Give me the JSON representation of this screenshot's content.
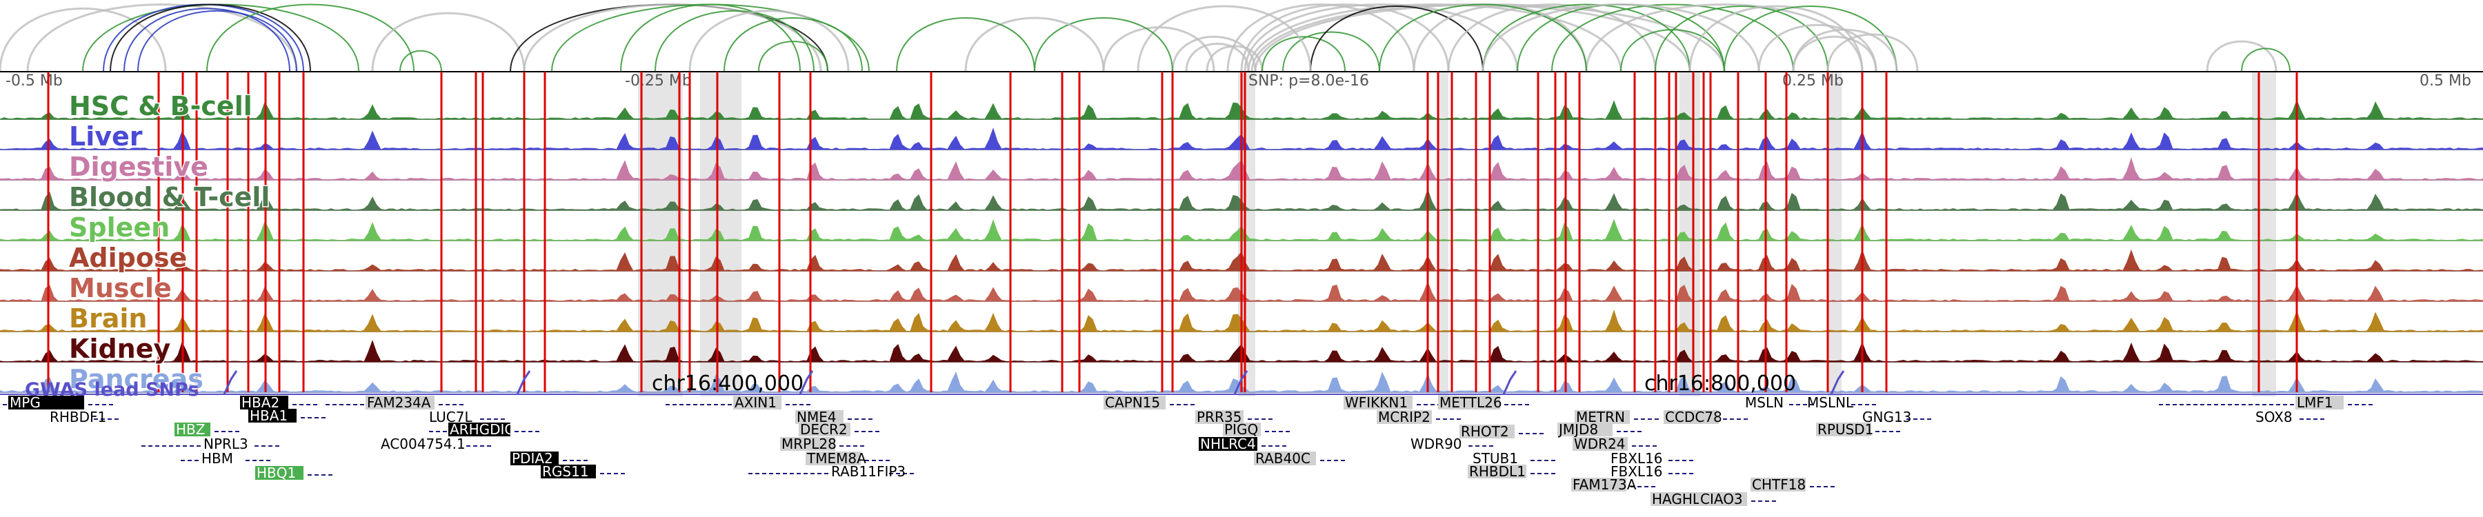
{
  "axis": {
    "ticks": [
      {
        "label": "-0.5 Mb"
      },
      {
        "label": "-0.25 Mb"
      },
      {
        "label": "0.25 Mb"
      },
      {
        "label": "0.5 Mb"
      }
    ],
    "snp_label": "SNP: p=8.0e-16"
  },
  "tracks": [
    {
      "name": "HSC & B-cell",
      "color": "#3b8a3b"
    },
    {
      "name": "Liver",
      "color": "#4a4ad6"
    },
    {
      "name": "Digestive",
      "color": "#c77aa6"
    },
    {
      "name": "Blood & T-cell",
      "color": "#4f7a4f"
    },
    {
      "name": "Spleen",
      "color": "#6cc25a"
    },
    {
      "name": "Adipose",
      "color": "#a8442f"
    },
    {
      "name": "Muscle",
      "color": "#c25f52"
    },
    {
      "name": "Brain",
      "color": "#b8861e"
    },
    {
      "name": "Kidney",
      "color": "#5a0a0a"
    },
    {
      "name": "Pancreas",
      "color": "#8aa6e0"
    }
  ],
  "gwas": {
    "label": "GWAS lead SNPs",
    "color": "#5a50c8"
  },
  "chrom_labels": [
    "chr16:400,000",
    "chr16:800,000"
  ],
  "genes": [
    {
      "name": "MPG",
      "style": "black"
    },
    {
      "name": "RHBDF1",
      "style": "plain"
    },
    {
      "name": "HBZ",
      "style": "green"
    },
    {
      "name": "NPRL3",
      "style": "plain"
    },
    {
      "name": "HBM",
      "style": "plain"
    },
    {
      "name": "HBQ1",
      "style": "green"
    },
    {
      "name": "HBA2",
      "style": "black"
    },
    {
      "name": "HBA1",
      "style": "black"
    },
    {
      "name": "FAM234A",
      "style": "gray"
    },
    {
      "name": "LUC7L",
      "style": "plain"
    },
    {
      "name": "ARHGDIG",
      "style": "black"
    },
    {
      "name": "AC004754.1",
      "style": "plain"
    },
    {
      "name": "PDIA2",
      "style": "black"
    },
    {
      "name": "RGS11",
      "style": "black"
    },
    {
      "name": "AXIN1",
      "style": "gray"
    },
    {
      "name": "NME4",
      "style": "gray"
    },
    {
      "name": "DECR2",
      "style": "gray"
    },
    {
      "name": "MRPL28",
      "style": "gray"
    },
    {
      "name": "TMEM8A",
      "style": "gray"
    },
    {
      "name": "RAB11FIP3",
      "style": "plain"
    },
    {
      "name": "CAPN15",
      "style": "gray"
    },
    {
      "name": "PRR35",
      "style": "gray"
    },
    {
      "name": "PIGQ",
      "style": "gray"
    },
    {
      "name": "NHLRC4",
      "style": "black"
    },
    {
      "name": "RAB40C",
      "style": "gray"
    },
    {
      "name": "WFIKKN1",
      "style": "gray"
    },
    {
      "name": "METTL26",
      "style": "gray"
    },
    {
      "name": "MCRIP2",
      "style": "gray"
    },
    {
      "name": "RHOT2",
      "style": "gray"
    },
    {
      "name": "WDR90",
      "style": "plain"
    },
    {
      "name": "STUB1",
      "style": "plain"
    },
    {
      "name": "RHBDL1",
      "style": "gray"
    },
    {
      "name": "METRN",
      "style": "gray"
    },
    {
      "name": "CCDC78",
      "style": "gray"
    },
    {
      "name": "JMJD8",
      "style": "gray"
    },
    {
      "name": "WDR24",
      "style": "gray"
    },
    {
      "name": "FBXL16",
      "style": "plain"
    },
    {
      "name": "FBXL16",
      "style": "plain"
    },
    {
      "name": "FAM173A",
      "style": "gray"
    },
    {
      "name": "HAGHL",
      "style": "gray"
    },
    {
      "name": "CIAO3",
      "style": "gray"
    },
    {
      "name": "CHTF18",
      "style": "gray"
    },
    {
      "name": "MSLN",
      "style": "plain"
    },
    {
      "name": "MSLNL",
      "style": "plain"
    },
    {
      "name": "GNG13",
      "style": "plain"
    },
    {
      "name": "RPUSD1",
      "style": "gray"
    },
    {
      "name": "LMF1",
      "style": "gray"
    },
    {
      "name": "SOX8",
      "style": "plain"
    }
  ],
  "colors": {
    "qtl_line": "#e00000",
    "highlight": "#cfcfcf",
    "arc_green": "#3a9a3a",
    "arc_gray": "#bdbdbd",
    "arc_blue": "#3040c0",
    "arc_black": "#111111",
    "gene_struct": "#1a1a7a"
  }
}
